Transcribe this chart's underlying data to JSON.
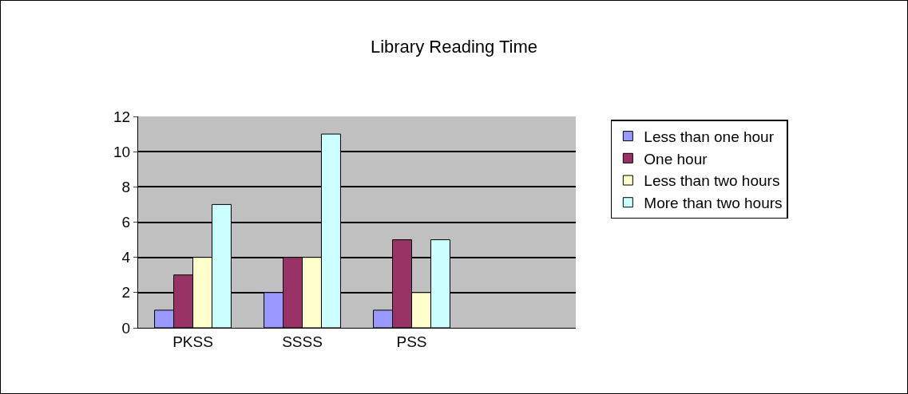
{
  "chart_data": {
    "type": "bar",
    "title": "Library Reading Time",
    "categories": [
      "PKSS",
      "SSSS",
      "PSS",
      null
    ],
    "series": [
      {
        "name": "Less than one hour",
        "color": "#9999ff",
        "values": [
          1,
          2,
          1,
          null
        ]
      },
      {
        "name": "One hour",
        "color": "#993366",
        "values": [
          3,
          4,
          5,
          null
        ]
      },
      {
        "name": "Less than two hours",
        "color": "#ffffcc",
        "values": [
          4,
          4,
          2,
          null
        ]
      },
      {
        "name": "More than two hours",
        "color": "#ccffff",
        "values": [
          7,
          11,
          5,
          null
        ]
      }
    ],
    "ylim": [
      0,
      12
    ],
    "yticks": [
      0,
      2,
      4,
      6,
      8,
      10,
      12
    ],
    "grid": "y",
    "legend": "right"
  }
}
